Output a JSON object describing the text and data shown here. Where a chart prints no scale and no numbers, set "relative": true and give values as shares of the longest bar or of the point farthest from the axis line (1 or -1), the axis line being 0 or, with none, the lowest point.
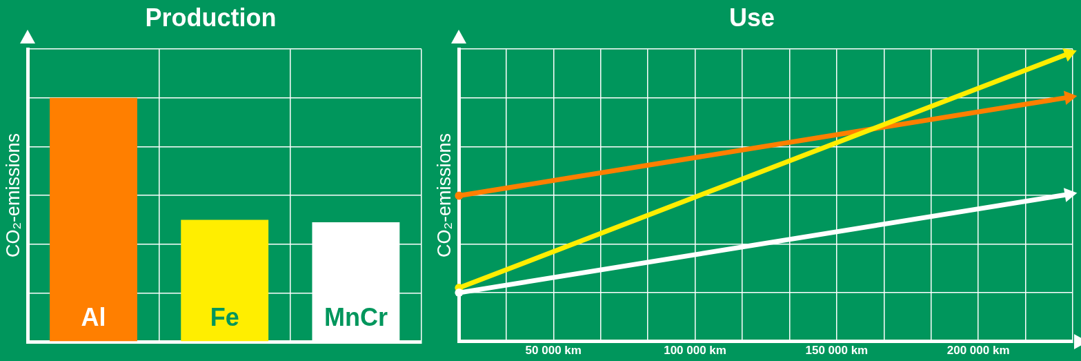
{
  "chart_data": [
    {
      "type": "bar",
      "title": "Production",
      "ylabel": "CO₂-emissions",
      "categories": [
        "Al",
        "Fe",
        "MnCr"
      ],
      "values": [
        1,
        0.5,
        0.49
      ],
      "colors": [
        "#ff7f00",
        "#ffee00",
        "#ffffff"
      ],
      "relative": true,
      "grid": true
    },
    {
      "type": "line",
      "title": "Use",
      "ylabel": "CO₂-emissions",
      "x": [
        16667,
        232000
      ],
      "xlim": [
        16667,
        233333
      ],
      "xticks": [
        {
          "value": 33333,
          "label": null
        },
        {
          "value": 50000,
          "label": "50 000 km"
        },
        {
          "value": 66667,
          "label": null
        },
        {
          "value": 83333,
          "label": null
        },
        {
          "value": 100000,
          "label": "100 000 km"
        },
        {
          "value": 116667,
          "label": null
        },
        {
          "value": 133333,
          "label": null
        },
        {
          "value": 150000,
          "label": "150 000 km"
        },
        {
          "value": 166667,
          "label": null
        },
        {
          "value": 183333,
          "label": null
        },
        {
          "value": 200000,
          "label": "200 000 km"
        },
        {
          "value": 216667,
          "label": null
        },
        {
          "value": 233333,
          "label": null
        }
      ],
      "series": [
        {
          "color": "#ff7f00",
          "values": [
            0.506,
            0.848
          ]
        },
        {
          "color": "#ffee00",
          "values": [
            0.186,
            1
          ]
        },
        {
          "color": "#ffffff",
          "values": [
            0.169,
            0.511
          ]
        }
      ],
      "relative": true,
      "grid": true,
      "marker": "circle",
      "tick_labels": "x"
    }
  ]
}
